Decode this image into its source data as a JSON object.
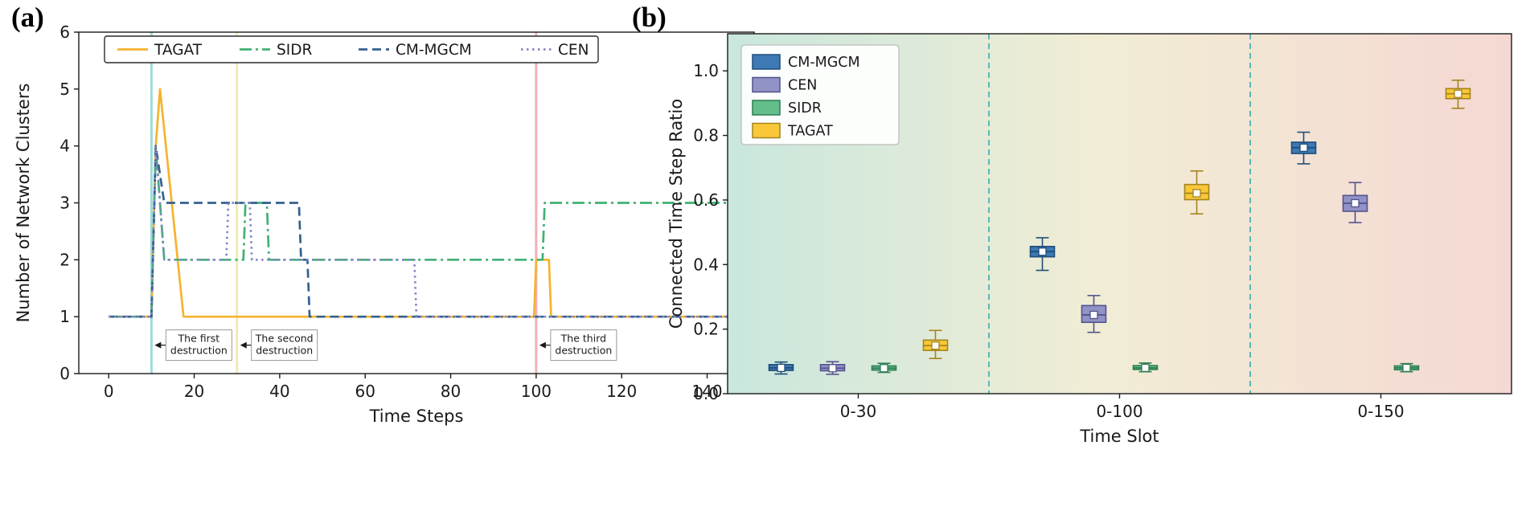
{
  "panels": {
    "a_label": "(a)",
    "b_label": "(b)"
  },
  "chart_data": [
    {
      "type": "line",
      "panel": "a",
      "xlabel": "Time Steps",
      "ylabel": "Number of Network Clusters",
      "xlim": [
        -7,
        151
      ],
      "ylim": [
        0,
        6
      ],
      "xticks": [
        0,
        20,
        40,
        60,
        80,
        100,
        120,
        140
      ],
      "yticks": [
        0,
        1,
        2,
        3,
        4,
        5,
        6
      ],
      "legend": [
        "TAGAT",
        "SIDR",
        "CM-MGCM",
        "CEN"
      ],
      "series": [
        {
          "name": "TAGAT",
          "color": "#F5B32E",
          "dash": "solid",
          "points": [
            [
              0,
              1
            ],
            [
              10,
              1
            ],
            [
              11,
              4
            ],
            [
              12,
              5
            ],
            [
              17.5,
              1
            ],
            [
              99.5,
              1
            ],
            [
              100,
              2
            ],
            [
              103,
              2
            ],
            [
              103.5,
              1
            ],
            [
              150,
              1
            ]
          ]
        },
        {
          "name": "SIDR",
          "color": "#41B074",
          "dash": "dashdot",
          "points": [
            [
              0,
              1
            ],
            [
              10,
              1
            ],
            [
              11,
              4
            ],
            [
              13,
              2
            ],
            [
              31.5,
              2
            ],
            [
              32,
              3
            ],
            [
              37,
              3
            ],
            [
              37.5,
              2
            ],
            [
              101.5,
              2
            ],
            [
              102,
              3
            ],
            [
              150,
              3
            ]
          ]
        },
        {
          "name": "CM-MGCM",
          "color": "#33618F",
          "dash": "dashed",
          "points": [
            [
              0,
              1
            ],
            [
              10,
              1
            ],
            [
              11,
              4
            ],
            [
              13,
              3
            ],
            [
              44.5,
              3
            ],
            [
              45,
              2
            ],
            [
              46.5,
              2
            ],
            [
              47,
              1
            ],
            [
              150,
              1
            ]
          ]
        },
        {
          "name": "CEN",
          "color": "#8486C6",
          "dash": "dotted",
          "points": [
            [
              0,
              1
            ],
            [
              10,
              1
            ],
            [
              11,
              4
            ],
            [
              13,
              2
            ],
            [
              27.5,
              2
            ],
            [
              28,
              3
            ],
            [
              33,
              3
            ],
            [
              33.5,
              2
            ],
            [
              71.5,
              2
            ],
            [
              72,
              1
            ],
            [
              150,
              1
            ]
          ]
        }
      ],
      "vlines": [
        {
          "x": 10,
          "color": "#8BD6D0"
        },
        {
          "x": 30,
          "color": "#EFE9A4"
        },
        {
          "x": 100,
          "color": "#F0A3AB"
        }
      ],
      "annotations": [
        {
          "line1": "The first",
          "line2": "destruction",
          "arrow_x": 10,
          "y": 0.5
        },
        {
          "line1": "The second",
          "line2": "destruction",
          "arrow_x": 30,
          "y": 0.5
        },
        {
          "line1": "The third",
          "line2": "destruction",
          "arrow_x": 100,
          "y": 0.5
        }
      ]
    },
    {
      "type": "box",
      "panel": "b",
      "xlabel": "Time Slot",
      "ylabel": "Connected Time Step Ratio",
      "ylim": [
        0,
        1.115
      ],
      "yticks": [
        0.0,
        0.2,
        0.4,
        0.6,
        0.8,
        1.0
      ],
      "categories": [
        "0-30",
        "0-100",
        "0-150"
      ],
      "legend": [
        "CM-MGCM",
        "CEN",
        "SIDR",
        "TAGAT"
      ],
      "separator_color": "#35ABB5",
      "gradient": [
        "#C9E7DD",
        "#F1EDD5",
        "#F5D8D3"
      ],
      "series": [
        {
          "name": "CM-MGCM",
          "fill": "#3E79B4",
          "edge": "#1E4E7A",
          "boxes": [
            {
              "whislo": 0.061,
              "q1": 0.072,
              "med": 0.08,
              "q3": 0.09,
              "whishi": 0.098
            },
            {
              "whislo": 0.382,
              "q1": 0.424,
              "med": 0.44,
              "q3": 0.456,
              "whishi": 0.483
            },
            {
              "whislo": 0.712,
              "q1": 0.744,
              "med": 0.762,
              "q3": 0.779,
              "whishi": 0.81
            }
          ]
        },
        {
          "name": "CEN",
          "fill": "#9193C7",
          "edge": "#53538C",
          "boxes": [
            {
              "whislo": 0.06,
              "q1": 0.071,
              "med": 0.079,
              "q3": 0.09,
              "whishi": 0.099
            },
            {
              "whislo": 0.19,
              "q1": 0.221,
              "med": 0.244,
              "q3": 0.273,
              "whishi": 0.304
            },
            {
              "whislo": 0.53,
              "q1": 0.565,
              "med": 0.59,
              "q3": 0.614,
              "whishi": 0.654
            }
          ]
        },
        {
          "name": "SIDR",
          "fill": "#63BE8C",
          "edge": "#2E7D52",
          "boxes": [
            {
              "whislo": 0.066,
              "q1": 0.073,
              "med": 0.079,
              "q3": 0.086,
              "whishi": 0.094
            },
            {
              "whislo": 0.068,
              "q1": 0.075,
              "med": 0.08,
              "q3": 0.087,
              "whishi": 0.095
            },
            {
              "whislo": 0.068,
              "q1": 0.074,
              "med": 0.08,
              "q3": 0.086,
              "whishi": 0.093
            }
          ]
        },
        {
          "name": "TAGAT",
          "fill": "#F8C838",
          "edge": "#A5841E",
          "boxes": [
            {
              "whislo": 0.109,
              "q1": 0.134,
              "med": 0.149,
              "q3": 0.166,
              "whishi": 0.196
            },
            {
              "whislo": 0.557,
              "q1": 0.601,
              "med": 0.621,
              "q3": 0.648,
              "whishi": 0.69
            },
            {
              "whislo": 0.884,
              "q1": 0.914,
              "med": 0.929,
              "q3": 0.945,
              "whishi": 0.971
            }
          ]
        }
      ]
    }
  ]
}
